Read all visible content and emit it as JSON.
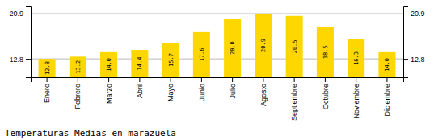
{
  "chart_data": {
    "type": "bar",
    "title": "Temperaturas Medias en marazuela",
    "categories": [
      "Enero",
      "Febrero",
      "Marzo",
      "Abril",
      "Mayo",
      "Junio",
      "Julio",
      "Agosto",
      "Septiembre",
      "Octubre",
      "Noviembre",
      "Diciembre"
    ],
    "values": [
      12.8,
      13.2,
      14.0,
      14.4,
      15.7,
      17.6,
      20.0,
      20.9,
      20.5,
      18.5,
      16.3,
      14.0
    ],
    "value_labels": [
      "12.8",
      "13.2",
      "14.0",
      "14.4",
      "15.7",
      "17.6",
      "20.0",
      "20.9",
      "20.5",
      "18.5",
      "16.3",
      "14.0"
    ],
    "data_labels": true,
    "color": "#FFD700",
    "ylim": [
      9.5,
      22.2
    ],
    "yticks": [
      12.8,
      20.9
    ],
    "y2lim": [
      9.5,
      22.2
    ],
    "y2ticks": [
      12.8,
      20.9
    ],
    "grid": true
  }
}
